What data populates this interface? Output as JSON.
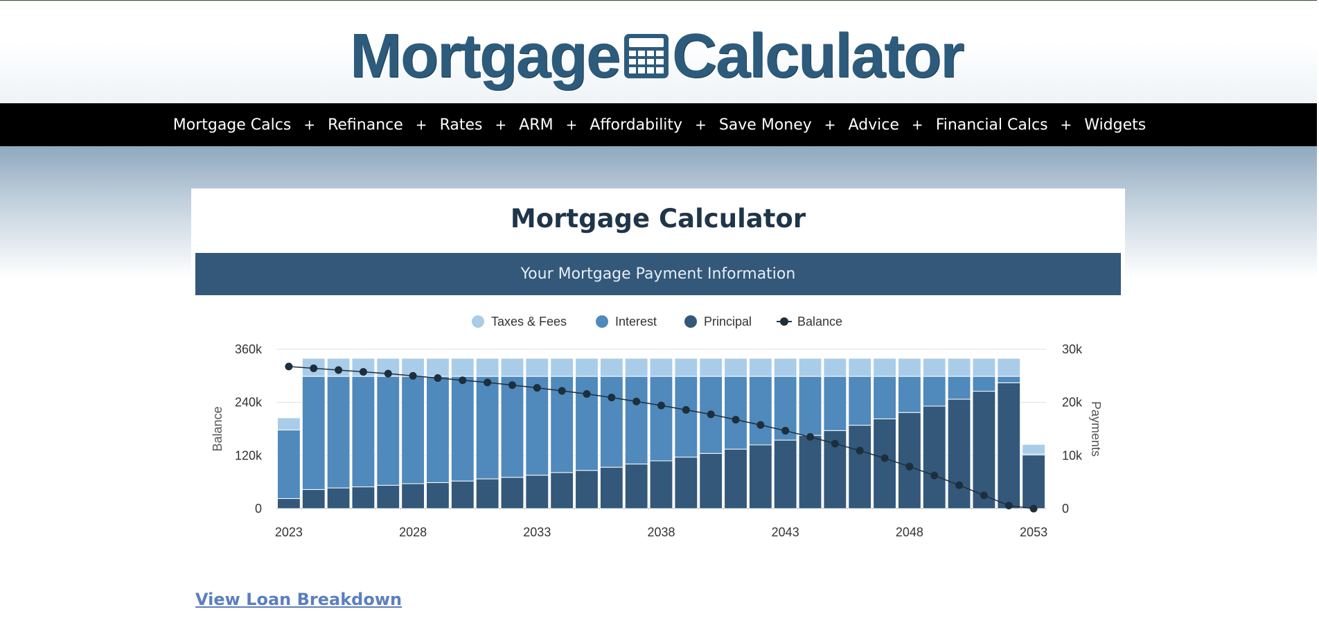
{
  "logo": {
    "word1": "Mortgage",
    "word2": "Calculator",
    "icon": "calculator-icon"
  },
  "nav": {
    "items": [
      "Mortgage Calcs",
      "Refinance",
      "Rates",
      "ARM",
      "Affordability",
      "Save Money",
      "Advice",
      "Financial Calcs",
      "Widgets"
    ],
    "separator": "+"
  },
  "card": {
    "title": "Mortgage Calculator",
    "band_label": "Your Mortgage Payment Information"
  },
  "link": {
    "label": "View Loan Breakdown"
  },
  "colors": {
    "taxes": "#a9cde9",
    "interest": "#5089bb",
    "principal": "#33587a",
    "balance": "#1d2e3d",
    "header_band": "#33587a",
    "nav_bg": "#000000"
  },
  "chart_data": {
    "type": "bar",
    "stacked": true,
    "legend": [
      "Taxes & Fees",
      "Interest",
      "Principal",
      "Balance"
    ],
    "legend_position": "top-center",
    "grid": true,
    "y_left": {
      "label": "Balance",
      "ticks": [
        "0",
        "120k",
        "240k",
        "360k"
      ],
      "range": [
        0,
        360000
      ]
    },
    "y_right": {
      "label": "Payments",
      "ticks": [
        "0",
        "10k",
        "20k",
        "30k"
      ],
      "range": [
        0,
        30000
      ]
    },
    "x_ticks": [
      "2023",
      "2028",
      "2033",
      "2038",
      "2043",
      "2048",
      "2053"
    ],
    "years": [
      2023,
      2024,
      2025,
      2026,
      2027,
      2028,
      2029,
      2030,
      2031,
      2032,
      2033,
      2034,
      2035,
      2036,
      2037,
      2038,
      2039,
      2040,
      2041,
      2042,
      2043,
      2044,
      2045,
      2046,
      2047,
      2048,
      2049,
      2050,
      2051,
      2052,
      2053
    ],
    "series": [
      {
        "name": "Principal",
        "axis": "right",
        "values": [
          1900,
          3600,
          3900,
          4100,
          4400,
          4700,
          4900,
          5200,
          5600,
          5900,
          6300,
          6800,
          7200,
          7800,
          8400,
          9000,
          9700,
          10400,
          11200,
          12000,
          12900,
          13800,
          14700,
          15700,
          16900,
          18100,
          19300,
          20600,
          22100,
          23700,
          10100
        ]
      },
      {
        "name": "Interest",
        "axis": "right",
        "values": [
          12900,
          21300,
          21000,
          20800,
          20500,
          20200,
          20000,
          19700,
          19300,
          19000,
          18600,
          18100,
          17700,
          17100,
          16500,
          15900,
          15200,
          14500,
          13700,
          12900,
          12000,
          11100,
          10200,
          9200,
          8000,
          6800,
          5600,
          4300,
          2800,
          1200,
          200
        ]
      },
      {
        "name": "Taxes & Fees",
        "axis": "right",
        "values": [
          2300,
          3400,
          3400,
          3400,
          3400,
          3400,
          3400,
          3400,
          3400,
          3400,
          3400,
          3400,
          3400,
          3400,
          3400,
          3400,
          3400,
          3400,
          3400,
          3400,
          3400,
          3400,
          3400,
          3400,
          3400,
          3400,
          3400,
          3400,
          3400,
          3400,
          1800
        ]
      },
      {
        "name": "Balance",
        "axis": "left",
        "type": "line",
        "values": [
          321000,
          317000,
          313000,
          309000,
          305000,
          300000,
          295000,
          290000,
          285000,
          279000,
          273000,
          266000,
          259000,
          251000,
          242000,
          233000,
          223000,
          213000,
          201000,
          189000,
          176000,
          162000,
          147000,
          131000,
          114000,
          95000,
          75000,
          53000,
          30000,
          7000,
          0
        ]
      }
    ]
  }
}
